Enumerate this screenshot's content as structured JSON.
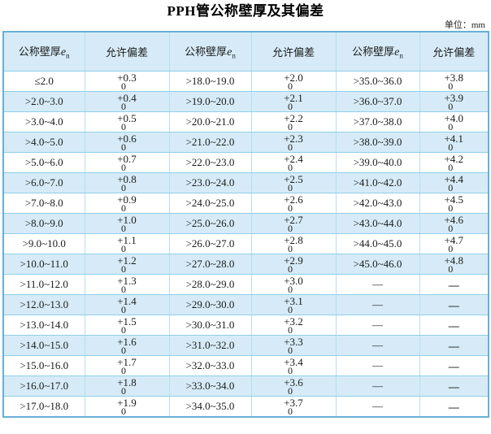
{
  "page": {
    "title": "PPH管公称壁厚及其偏差",
    "unit_label": "单位：mm"
  },
  "colors": {
    "outer_border": "#66b0d7",
    "grid_horizontal": "#8ecfeb",
    "grid_vertical": "#b5dff2",
    "stripe_fill": "#d6ebf7",
    "text": "#1a1a1a"
  },
  "table": {
    "header": {
      "thickness_prefix": "公称壁厚",
      "thickness_symbol": "e",
      "thickness_subscript": "n",
      "deviation_label": "允许偏差"
    },
    "rows": [
      {
        "range1": "≤2.0",
        "dev1_plus": "+0.3",
        "dev1_zero": "0",
        "range2": ">18.0~19.0",
        "dev2_plus": "+2.0",
        "dev2_zero": "0",
        "range3": ">35.0~36.0",
        "dev3_plus": "+3.8",
        "dev3_zero": "0"
      },
      {
        "range1": ">2.0~3.0",
        "dev1_plus": "+0.4",
        "dev1_zero": "0",
        "range2": ">19.0~20.0",
        "dev2_plus": "+2.1",
        "dev2_zero": "0",
        "range3": ">36.0~37.0",
        "dev3_plus": "+3.9",
        "dev3_zero": "0"
      },
      {
        "range1": ">3.0~4.0",
        "dev1_plus": "+0.5",
        "dev1_zero": "0",
        "range2": ">20.0~21.0",
        "dev2_plus": "+2.2",
        "dev2_zero": "0",
        "range3": ">37.0~38.0",
        "dev3_plus": "+4.0",
        "dev3_zero": "0"
      },
      {
        "range1": ">4.0~5.0",
        "dev1_plus": "+0.6",
        "dev1_zero": "0",
        "range2": ">21.0~22.0",
        "dev2_plus": "+2.3",
        "dev2_zero": "0",
        "range3": ">38.0~39.0",
        "dev3_plus": "+4.1",
        "dev3_zero": "0"
      },
      {
        "range1": ">5.0~6.0",
        "dev1_plus": "+0.7",
        "dev1_zero": "0",
        "range2": ">22.0~23.0",
        "dev2_plus": "+2.4",
        "dev2_zero": "0",
        "range3": ">39.0~40.0",
        "dev3_plus": "+4.2",
        "dev3_zero": "0"
      },
      {
        "range1": ">6.0~7.0",
        "dev1_plus": "+0.8",
        "dev1_zero": "0",
        "range2": ">23.0~24.0",
        "dev2_plus": "+2.5",
        "dev2_zero": "0",
        "range3": ">41.0~42.0",
        "dev3_plus": "+4.4",
        "dev3_zero": "0"
      },
      {
        "range1": ">7.0~8.0",
        "dev1_plus": "+0.9",
        "dev1_zero": "0",
        "range2": ">24.0~25.0",
        "dev2_plus": "+2.6",
        "dev2_zero": "0",
        "range3": ">42.0~43.0",
        "dev3_plus": "+4.5",
        "dev3_zero": "0"
      },
      {
        "range1": ">8.0~9.0",
        "dev1_plus": "+1.0",
        "dev1_zero": "0",
        "range2": ">25.0~26.0",
        "dev2_plus": "+2.7",
        "dev2_zero": "0",
        "range3": ">43.0~44.0",
        "dev3_plus": "+4.6",
        "dev3_zero": "0"
      },
      {
        "range1": ">9.0~10.0",
        "dev1_plus": "+1.1",
        "dev1_zero": "0",
        "range2": ">26.0~27.0",
        "dev2_plus": "+2.8",
        "dev2_zero": "0",
        "range3": ">44.0~45.0",
        "dev3_plus": "+4.7",
        "dev3_zero": "0"
      },
      {
        "range1": ">10.0~11.0",
        "dev1_plus": "+1.2",
        "dev1_zero": "0",
        "range2": ">27.0~28.0",
        "dev2_plus": "+2.9",
        "dev2_zero": "0",
        "range3": ">45.0~46.0",
        "dev3_plus": "+4.8",
        "dev3_zero": "0"
      },
      {
        "range1": ">11.0~12.0",
        "dev1_plus": "+1.3",
        "dev1_zero": "0",
        "range2": ">28.0~29.0",
        "dev2_plus": "+3.0",
        "dev2_zero": "0",
        "range3": "—",
        "dev3_plus": "—",
        "dev3_zero": ""
      },
      {
        "range1": ">12.0~13.0",
        "dev1_plus": "+1.4",
        "dev1_zero": "0",
        "range2": ">29.0~30.0",
        "dev2_plus": "+3.1",
        "dev2_zero": "0",
        "range3": "—",
        "dev3_plus": "—",
        "dev3_zero": ""
      },
      {
        "range1": ">13.0~14.0",
        "dev1_plus": "+1.5",
        "dev1_zero": "0",
        "range2": ">30.0~31.0",
        "dev2_plus": "+3.2",
        "dev2_zero": "0",
        "range3": "—",
        "dev3_plus": "—",
        "dev3_zero": ""
      },
      {
        "range1": ">14.0~15.0",
        "dev1_plus": "+1.6",
        "dev1_zero": "0",
        "range2": ">31.0~32.0",
        "dev2_plus": "+3.3",
        "dev2_zero": "0",
        "range3": "—",
        "dev3_plus": "—",
        "dev3_zero": ""
      },
      {
        "range1": ">15.0~16.0",
        "dev1_plus": "+1.7",
        "dev1_zero": "0",
        "range2": ">32.0~33.0",
        "dev2_plus": "+3.4",
        "dev2_zero": "0",
        "range3": "—",
        "dev3_plus": "—",
        "dev3_zero": ""
      },
      {
        "range1": ">16.0~17.0",
        "dev1_plus": "+1.8",
        "dev1_zero": "0",
        "range2": ">33.0~34.0",
        "dev2_plus": "+3.6",
        "dev2_zero": "0",
        "range3": "—",
        "dev3_plus": "—",
        "dev3_zero": ""
      },
      {
        "range1": ">17.0~18.0",
        "dev1_plus": "+1.9",
        "dev1_zero": "0",
        "range2": ">34.0~35.0",
        "dev2_plus": "+3.7",
        "dev2_zero": "0",
        "range3": "—",
        "dev3_plus": "—",
        "dev3_zero": ""
      }
    ]
  }
}
